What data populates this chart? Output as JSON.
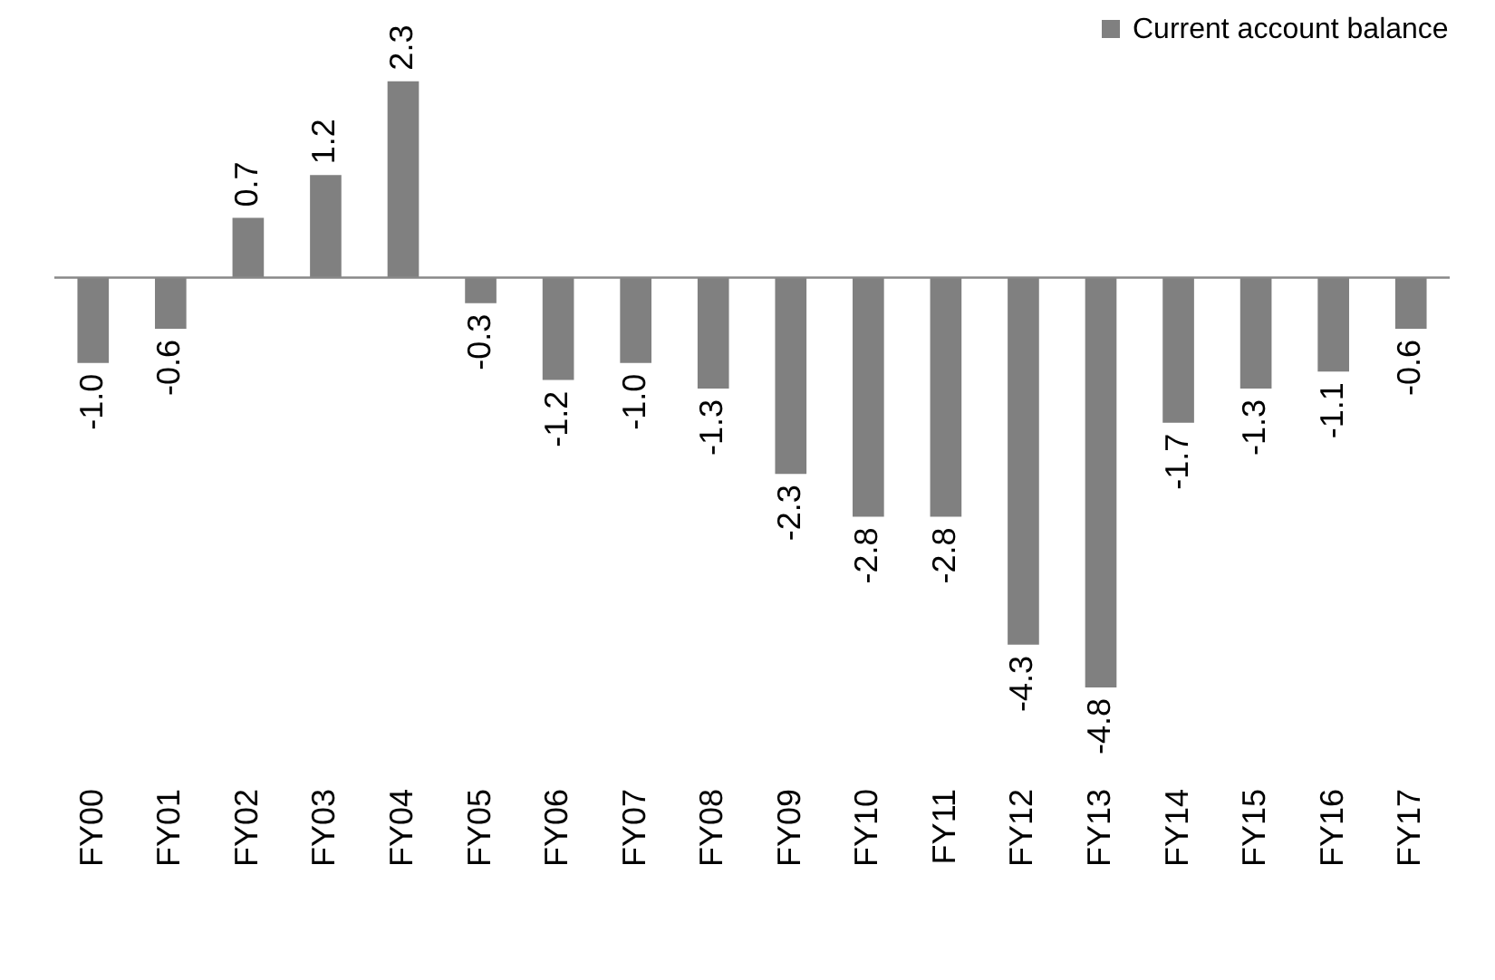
{
  "chart_data": {
    "type": "bar",
    "categories": [
      "FY00",
      "FY01",
      "FY02",
      "FY03",
      "FY04",
      "FY05",
      "FY06",
      "FY07",
      "FY08",
      "FY09",
      "FY10",
      "FY11",
      "FY12",
      "FY13",
      "FY14",
      "FY15",
      "FY16",
      "FY17"
    ],
    "series": [
      {
        "name": "Current account balance",
        "color": "#808080",
        "values": [
          -1.0,
          -0.6,
          0.7,
          1.2,
          2.3,
          -0.3,
          -1.2,
          -1.0,
          -1.3,
          -2.3,
          -2.8,
          -2.8,
          -4.3,
          -4.8,
          -1.7,
          -1.3,
          -1.1,
          -0.6
        ],
        "value_labels": [
          "-1.0",
          "-0.6",
          "0.7",
          "1.2",
          "2.3",
          "-0.3",
          "-1.2",
          "-1.0",
          "-1.3",
          "-2.3",
          "-2.8",
          "-2.8",
          "-4.3",
          "-4.8",
          "-1.7",
          "-1.3",
          "-1.1",
          "-0.6"
        ]
      }
    ],
    "legend": "top right",
    "grid": false
  }
}
